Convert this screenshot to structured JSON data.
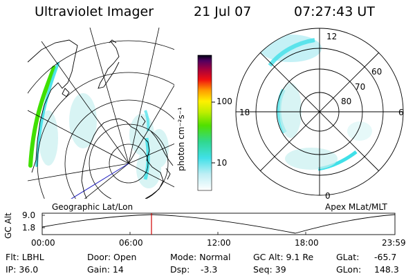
{
  "header": {
    "title": "Ultraviolet Imager",
    "date": "21 Jul 07",
    "time": "07:27:43 UT"
  },
  "colorbar": {
    "unit_label": "photon cm⁻²s⁻¹",
    "ticks": [
      "100",
      "10"
    ]
  },
  "geo_panel": {
    "label": "Geographic Lat/Lon"
  },
  "apex_panel": {
    "label": "Apex MLat/MLT",
    "mlt_labels": {
      "top": "12",
      "left": "18",
      "right": "6",
      "bottom": "0"
    },
    "mlat_labels": [
      "60",
      "70",
      "80"
    ]
  },
  "altitude_plot": {
    "axis_label": "GC Alt",
    "y_ticks": [
      "9.0",
      "1.8"
    ],
    "x_ticks": [
      "00:00",
      "06:00",
      "12:00",
      "18:00",
      "23:59"
    ],
    "current_time": "07:27:43"
  },
  "status": {
    "flt": "Flt: LBHL",
    "ip": "IP: 36.0",
    "door": "Door: Open",
    "gain": "Gain: 14",
    "mode": "Mode: Normal",
    "dsp_label": "Dsp:",
    "dsp_value": "-3.3",
    "gc_alt": "GC Alt: 9.1 Re",
    "seq": "Seq: 39",
    "glat_label": "GLat:",
    "glat_value": "-65.7",
    "glon_label": "GLon:",
    "glon_value": "148.3"
  },
  "colors": {
    "emission_cyan": "#40e0e8",
    "emission_green": "#40e000",
    "current_time_marker": "#d00000"
  }
}
